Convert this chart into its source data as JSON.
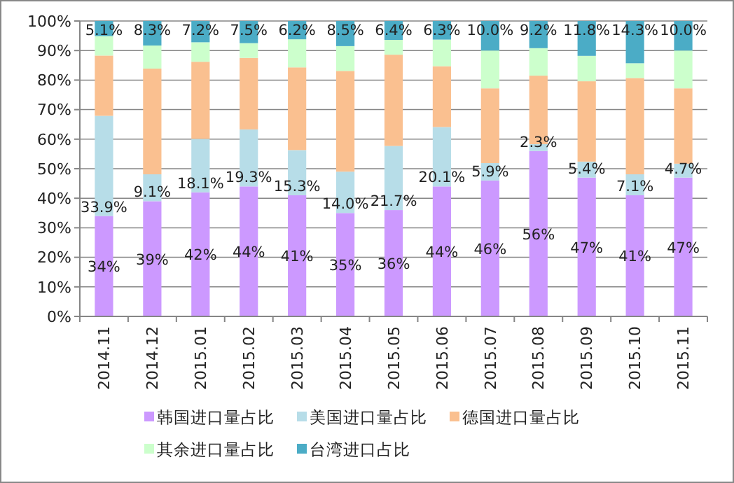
{
  "chart_data": {
    "type": "bar",
    "stacked": true,
    "categories": [
      "2014.11",
      "2014.12",
      "2015.01",
      "2015.02",
      "2015.03",
      "2015.04",
      "2015.05",
      "2015.06",
      "2015.07",
      "2015.08",
      "2015.09",
      "2015.10",
      "2015.11"
    ],
    "ylim": [
      0,
      100
    ],
    "yticks": [
      {
        "value": 0,
        "label": "0%"
      },
      {
        "value": 10,
        "label": "10%"
      },
      {
        "value": 20,
        "label": "20%"
      },
      {
        "value": 30,
        "label": "30%"
      },
      {
        "value": 40,
        "label": "40%"
      },
      {
        "value": 50,
        "label": "50%"
      },
      {
        "value": 60,
        "label": "60%"
      },
      {
        "value": 70,
        "label": "70%"
      },
      {
        "value": 80,
        "label": "80%"
      },
      {
        "value": 90,
        "label": "90%"
      },
      {
        "value": 100,
        "label": "100%"
      }
    ],
    "grid": "y",
    "legend": "bottom",
    "series": [
      {
        "name": "韩国进口量占比",
        "color": "#cc99ff",
        "values": [
          34,
          39,
          42,
          44,
          41,
          35,
          36,
          44,
          46,
          56,
          47,
          41,
          47
        ],
        "value_labels": [
          "34%",
          "39%",
          "42%",
          "44%",
          "41%",
          "35%",
          "36%",
          "44%",
          "46%",
          "56%",
          "47%",
          "41%",
          "47%"
        ]
      },
      {
        "name": "美国进口量占比",
        "color": "#b7dde8",
        "values": [
          33.9,
          9.1,
          18.1,
          19.3,
          15.3,
          14.0,
          21.7,
          20.1,
          5.9,
          2.3,
          5.4,
          7.1,
          4.7
        ],
        "value_labels": [
          "33.9%",
          "9.1%",
          "18.1%",
          "19.3%",
          "15.3%",
          "14.0%",
          "21.7%",
          "20.1%",
          "5.9%",
          "2.3%",
          "5.4%",
          "7.1%",
          "4.7%"
        ]
      },
      {
        "name": "德国进口量占比",
        "color": "#fac090",
        "values": [
          20.4,
          35.8,
          26.1,
          24.2,
          28,
          34.1,
          30.9,
          20.6,
          25.3,
          23.2,
          27.2,
          32.6,
          25.5
        ]
      },
      {
        "name": "其余进口量占比",
        "color": "#ccffcc",
        "values": [
          6.6,
          7.8,
          6.6,
          5.0,
          9.5,
          8.4,
          5.0,
          9.0,
          12.8,
          9.3,
          8.6,
          5.0,
          12.8
        ]
      },
      {
        "name": "台湾进口占比",
        "color": "#4bacc6",
        "values": [
          5.1,
          8.3,
          7.2,
          7.5,
          6.2,
          8.5,
          6.4,
          6.3,
          10.0,
          9.2,
          11.8,
          14.3,
          10.0
        ],
        "value_labels": [
          "5.1%",
          "8.3%",
          "7.2%",
          "7.5%",
          "6.2%",
          "8.5%",
          "6.4%",
          "6.3%",
          "10.0%",
          "9.2%",
          "11.8%",
          "14.3%",
          "10.0%"
        ]
      }
    ]
  }
}
